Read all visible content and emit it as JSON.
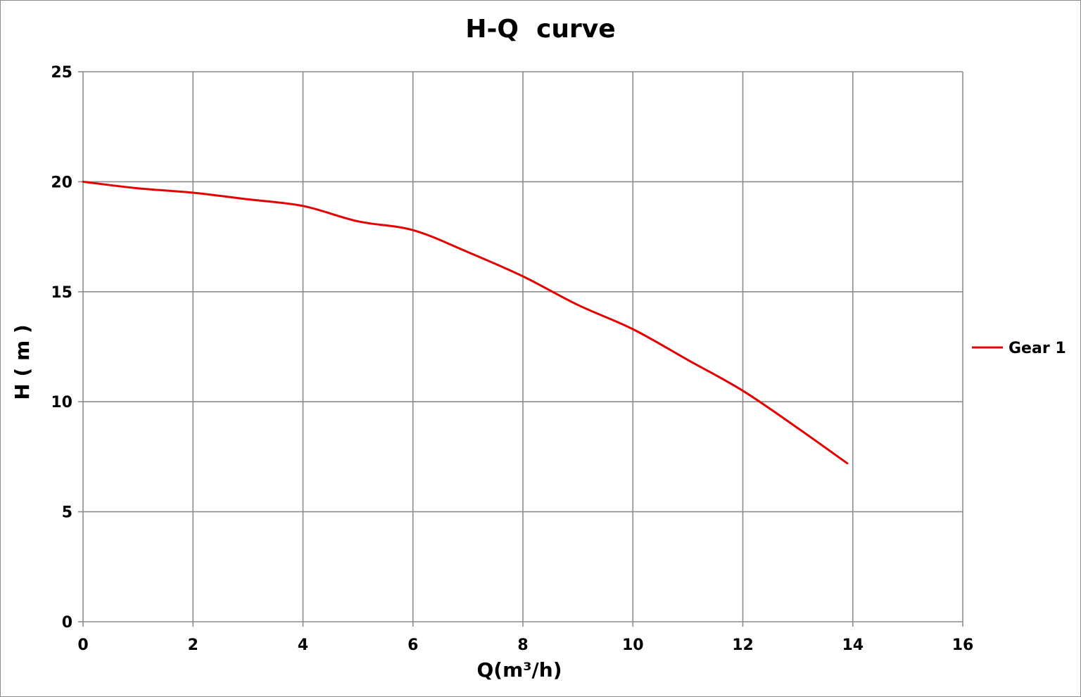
{
  "chart_data": {
    "type": "line",
    "title": "H-Q  curve",
    "xlabel": "Q(m³/h)",
    "ylabel": "H ( m )",
    "xlim": [
      0,
      16
    ],
    "ylim": [
      0,
      25
    ],
    "x_ticks": [
      "0",
      "2",
      "4",
      "6",
      "8",
      "10",
      "12",
      "14",
      "16"
    ],
    "y_ticks": [
      "0",
      "5",
      "10",
      "15",
      "20",
      "25"
    ],
    "grid": true,
    "legend_position": "right",
    "series": [
      {
        "name": "Gear 1",
        "color": "#e60000",
        "x": [
          0,
          1,
          2,
          3,
          4,
          5,
          6,
          7,
          8,
          9,
          10,
          11,
          12,
          13,
          13.9
        ],
        "y": [
          20.0,
          19.7,
          19.5,
          19.2,
          18.9,
          18.2,
          17.8,
          16.8,
          15.7,
          14.4,
          13.3,
          11.9,
          10.5,
          8.8,
          7.2
        ]
      }
    ]
  }
}
